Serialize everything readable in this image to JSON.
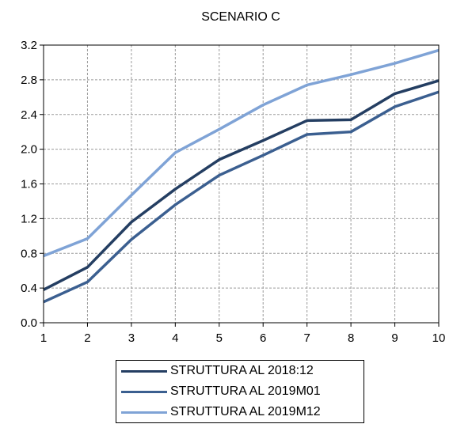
{
  "chart_data": {
    "type": "line",
    "title": "SCENARIO C",
    "xlabel": "",
    "ylabel": "",
    "x": [
      1,
      2,
      3,
      4,
      5,
      6,
      7,
      8,
      9,
      10
    ],
    "xlim": [
      1,
      10
    ],
    "ylim": [
      0.0,
      3.2
    ],
    "yticks": [
      "0.0",
      "0.4",
      "0.8",
      "1.2",
      "1.6",
      "2.0",
      "2.4",
      "2.8",
      "3.2"
    ],
    "xticks": [
      "1",
      "2",
      "3",
      "4",
      "5",
      "6",
      "7",
      "8",
      "9",
      "10"
    ],
    "grid": true,
    "legend_position": "bottom",
    "series": [
      {
        "name": "STRUTTURA AL 2018:12",
        "color": "#243e62",
        "values": [
          0.38,
          0.64,
          1.16,
          1.54,
          1.88,
          2.1,
          2.33,
          2.34,
          2.64,
          2.79
        ]
      },
      {
        "name": "STRUTTURA AL 2019M01",
        "color": "#3b5f90",
        "values": [
          0.24,
          0.47,
          0.96,
          1.36,
          1.7,
          1.93,
          2.17,
          2.2,
          2.49,
          2.66
        ]
      },
      {
        "name": "STRUTTURA AL 2019M12",
        "color": "#7fa3d6",
        "values": [
          0.77,
          0.97,
          1.47,
          1.96,
          2.23,
          2.51,
          2.74,
          2.86,
          2.99,
          3.14
        ]
      }
    ]
  }
}
